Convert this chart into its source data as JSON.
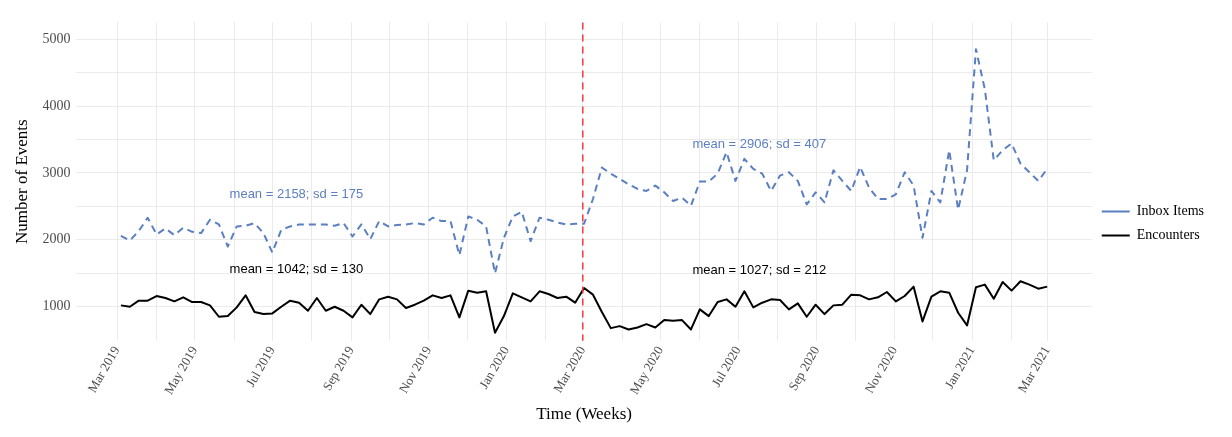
{
  "chart_data": {
    "type": "line",
    "xlabel": "Time (Weeks)",
    "ylabel": "Number of Events",
    "legend": "right",
    "grid": true,
    "marker": "none",
    "x": [
      "2019-03-04",
      "2019-03-11",
      "2019-03-18",
      "2019-03-25",
      "2019-04-01",
      "2019-04-08",
      "2019-04-15",
      "2019-04-22",
      "2019-04-29",
      "2019-05-06",
      "2019-05-13",
      "2019-05-20",
      "2019-05-27",
      "2019-06-03",
      "2019-06-10",
      "2019-06-17",
      "2019-06-24",
      "2019-07-01",
      "2019-07-08",
      "2019-07-15",
      "2019-07-22",
      "2019-07-29",
      "2019-08-05",
      "2019-08-12",
      "2019-08-19",
      "2019-08-26",
      "2019-09-02",
      "2019-09-09",
      "2019-09-16",
      "2019-09-23",
      "2019-09-30",
      "2019-10-07",
      "2019-10-14",
      "2019-10-21",
      "2019-10-28",
      "2019-11-04",
      "2019-11-11",
      "2019-11-18",
      "2019-11-25",
      "2019-12-02",
      "2019-12-09",
      "2019-12-16",
      "2019-12-23",
      "2019-12-30",
      "2020-01-06",
      "2020-01-13",
      "2020-01-20",
      "2020-01-27",
      "2020-02-03",
      "2020-02-10",
      "2020-02-17",
      "2020-02-24",
      "2020-03-02",
      "2020-03-09",
      "2020-03-16",
      "2020-03-23",
      "2020-03-30",
      "2020-04-06",
      "2020-04-13",
      "2020-04-20",
      "2020-04-27",
      "2020-05-04",
      "2020-05-11",
      "2020-05-18",
      "2020-05-25",
      "2020-06-01",
      "2020-06-08",
      "2020-06-15",
      "2020-06-22",
      "2020-06-29",
      "2020-07-06",
      "2020-07-13",
      "2020-07-20",
      "2020-07-27",
      "2020-08-03",
      "2020-08-10",
      "2020-08-17",
      "2020-08-24",
      "2020-08-31",
      "2020-09-07",
      "2020-09-14",
      "2020-09-21",
      "2020-09-28",
      "2020-10-05",
      "2020-10-12",
      "2020-10-19",
      "2020-10-26",
      "2020-11-02",
      "2020-11-09",
      "2020-11-16",
      "2020-11-23",
      "2020-11-30",
      "2020-12-07",
      "2020-12-14",
      "2020-12-21",
      "2020-12-28",
      "2021-01-04",
      "2021-01-11",
      "2021-01-18",
      "2021-01-25",
      "2021-02-01",
      "2021-02-08",
      "2021-02-15",
      "2021-02-22",
      "2021-03-01"
    ],
    "series": [
      {
        "name": "Inbox Items",
        "color": "#5b7fc0",
        "line_style": "dashed",
        "values": [
          2060,
          1990,
          2130,
          2330,
          2080,
          2170,
          2070,
          2180,
          2120,
          2100,
          2300,
          2230,
          1900,
          2200,
          2210,
          2250,
          2100,
          1810,
          2150,
          2200,
          2230,
          2230,
          2230,
          2230,
          2210,
          2250,
          2050,
          2230,
          2010,
          2280,
          2200,
          2220,
          2230,
          2250,
          2230,
          2330,
          2280,
          2280,
          1770,
          2350,
          2300,
          2200,
          1500,
          2030,
          2350,
          2420,
          1980,
          2330,
          2300,
          2260,
          2230,
          2240,
          2240,
          2610,
          3080,
          2990,
          2910,
          2830,
          2760,
          2730,
          2810,
          2710,
          2580,
          2630,
          2510,
          2870,
          2870,
          2990,
          3310,
          2880,
          3210,
          3060,
          2990,
          2730,
          2960,
          3010,
          2880,
          2530,
          2710,
          2560,
          3040,
          2880,
          2730,
          3090,
          2780,
          2610,
          2610,
          2680,
          3010,
          2810,
          2030,
          2730,
          2560,
          3340,
          2450,
          3040,
          4850,
          4250,
          3190,
          3340,
          3440,
          3140,
          3010,
          2880,
          3060
        ]
      },
      {
        "name": "Encounters",
        "color": "#000000",
        "line_style": "solid",
        "values": [
          1020,
          1000,
          1090,
          1090,
          1160,
          1130,
          1080,
          1140,
          1070,
          1070,
          1020,
          850,
          860,
          990,
          1170,
          920,
          890,
          900,
          1000,
          1090,
          1060,
          940,
          1130,
          940,
          1000,
          940,
          840,
          1030,
          890,
          1110,
          1150,
          1110,
          980,
          1030,
          1090,
          1170,
          1130,
          1170,
          840,
          1240,
          1210,
          1230,
          610,
          860,
          1200,
          1140,
          1080,
          1230,
          1190,
          1130,
          1150,
          1060,
          1280,
          1180,
          920,
          680,
          710,
          660,
          690,
          740,
          690,
          800,
          790,
          800,
          660,
          960,
          860,
          1070,
          1110,
          1000,
          1230,
          990,
          1060,
          1110,
          1100,
          960,
          1050,
          850,
          1030,
          890,
          1020,
          1030,
          1180,
          1170,
          1110,
          1140,
          1220,
          1080,
          1160,
          1300,
          780,
          1150,
          1230,
          1210,
          910,
          720,
          1290,
          1330,
          1120,
          1370,
          1240,
          1380,
          1330,
          1270,
          1300
        ]
      }
    ],
    "xlim": [
      "2019-01-28",
      "2021-04-05"
    ],
    "xticks": [
      {
        "value": "2019-03-01",
        "label": "Mar 2019"
      },
      {
        "value": "2019-04-01",
        "label": null
      },
      {
        "value": "2019-05-01",
        "label": "May 2019"
      },
      {
        "value": "2019-06-01",
        "label": null
      },
      {
        "value": "2019-07-01",
        "label": "Jul 2019"
      },
      {
        "value": "2019-08-01",
        "label": null
      },
      {
        "value": "2019-09-01",
        "label": "Sep 2019"
      },
      {
        "value": "2019-10-01",
        "label": null
      },
      {
        "value": "2019-11-01",
        "label": "Nov 2019"
      },
      {
        "value": "2019-12-01",
        "label": null
      },
      {
        "value": "2020-01-01",
        "label": "Jan 2020"
      },
      {
        "value": "2020-02-01",
        "label": null
      },
      {
        "value": "2020-03-01",
        "label": "Mar 2020"
      },
      {
        "value": "2020-04-01",
        "label": null
      },
      {
        "value": "2020-05-01",
        "label": "May 2020"
      },
      {
        "value": "2020-06-01",
        "label": null
      },
      {
        "value": "2020-07-01",
        "label": "Jul 2020"
      },
      {
        "value": "2020-08-01",
        "label": null
      },
      {
        "value": "2020-09-01",
        "label": "Sep 2020"
      },
      {
        "value": "2020-10-01",
        "label": null
      },
      {
        "value": "2020-11-01",
        "label": "Nov 2020"
      },
      {
        "value": "2020-12-01",
        "label": null
      },
      {
        "value": "2021-01-01",
        "label": "Jan 2021"
      },
      {
        "value": "2021-02-01",
        "label": null
      },
      {
        "value": "2021-03-01",
        "label": "Mar 2021"
      }
    ],
    "ylim": [
      490,
      5250
    ],
    "yticks": [
      1000,
      {
        "value": 1500,
        "label": null
      },
      2000,
      {
        "value": 2500,
        "label": null
      },
      3000,
      {
        "value": 3500,
        "label": null
      },
      4000,
      {
        "value": 4500,
        "label": null
      },
      5000
    ],
    "ref_lines": [
      {
        "axis": "x",
        "value": "2020-03-01",
        "label": null,
        "color": "#f8383b",
        "line_style": "dashed"
      }
    ],
    "annotations": [
      "mean = 2158; sd = 175",
      "mean = 1042; sd = 130",
      "mean = 2906; sd = 407",
      "mean = 1027; sd = 212"
    ]
  }
}
